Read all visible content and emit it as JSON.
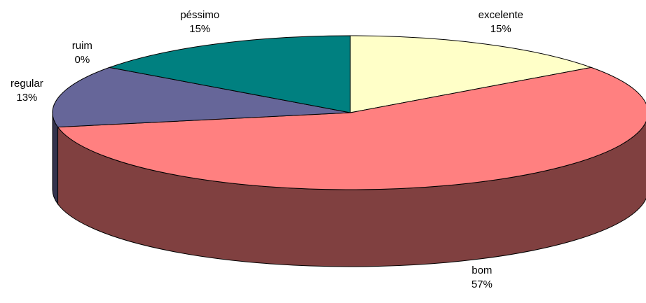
{
  "chart_data": {
    "type": "pie",
    "style": "3d",
    "title": "",
    "categories": [
      "excelente",
      "bom",
      "regular",
      "ruim",
      "péssimo"
    ],
    "values": [
      15,
      57,
      13,
      0,
      15
    ],
    "value_labels": [
      "15%",
      "57%",
      "13%",
      "0%",
      "15%"
    ],
    "colors": [
      "#FFFFC8",
      "#FF8080",
      "#666699",
      "#8A2D64",
      "#008080"
    ],
    "legend": "none"
  }
}
